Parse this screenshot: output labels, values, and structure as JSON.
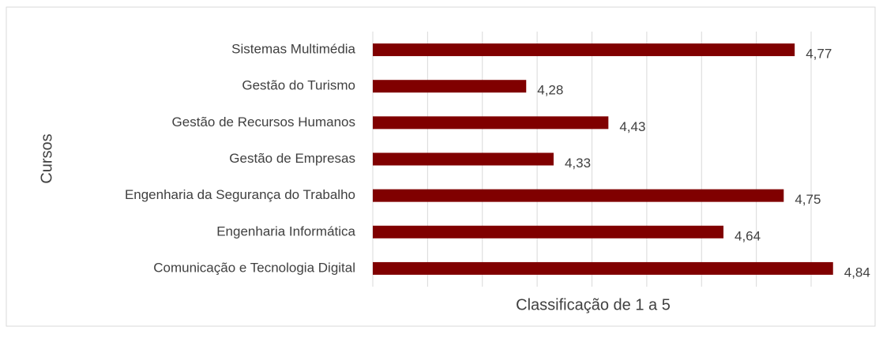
{
  "chart_data": {
    "type": "bar",
    "orientation": "horizontal",
    "x_label": "Classificação de 1 a 5",
    "y_label": "Cursos",
    "categories": [
      "Sistemas Multimédia",
      "Gestão do Turismo",
      "Gestão de Recursos Humanos",
      "Gestão de Empresas",
      "Engenharia da Segurança do Trabalho",
      "Engenharia Informática",
      "Comunicação e Tecnologia Digital"
    ],
    "values": [
      4.77,
      4.28,
      4.43,
      4.33,
      4.75,
      4.64,
      4.84
    ],
    "value_labels": [
      "4,77",
      "4,28",
      "4,43",
      "4,33",
      "4,75",
      "4,64",
      "4,84"
    ],
    "color": "#800000",
    "xlim": [
      4,
      4.8
    ],
    "xticks": [
      4,
      4.1,
      4.2,
      4.3,
      4.4,
      4.5,
      4.6,
      4.7,
      4.8
    ],
    "grid": true
  }
}
